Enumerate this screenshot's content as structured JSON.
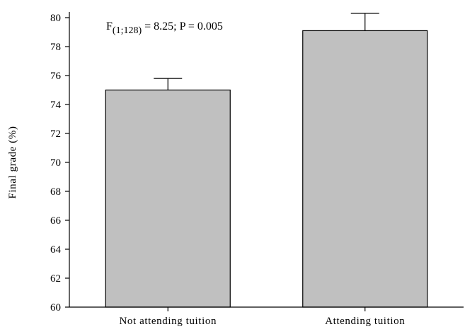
{
  "chart_data": {
    "type": "bar",
    "categories": [
      "Not attending tuition",
      "Attending tuition"
    ],
    "values": [
      75.0,
      79.1
    ],
    "error_upper": [
      75.8,
      80.3
    ],
    "xlabel": "",
    "ylabel": "Final grade (%)",
    "ylim": [
      60,
      80
    ],
    "yticks": [
      60,
      62,
      64,
      66,
      68,
      70,
      72,
      74,
      76,
      78,
      80
    ],
    "annotation": {
      "prefix": "F",
      "subscript": "(1;128)",
      "suffix": " = 8.25; P = 0.005"
    },
    "grid": false,
    "bar_color": "#c0c0c0"
  }
}
